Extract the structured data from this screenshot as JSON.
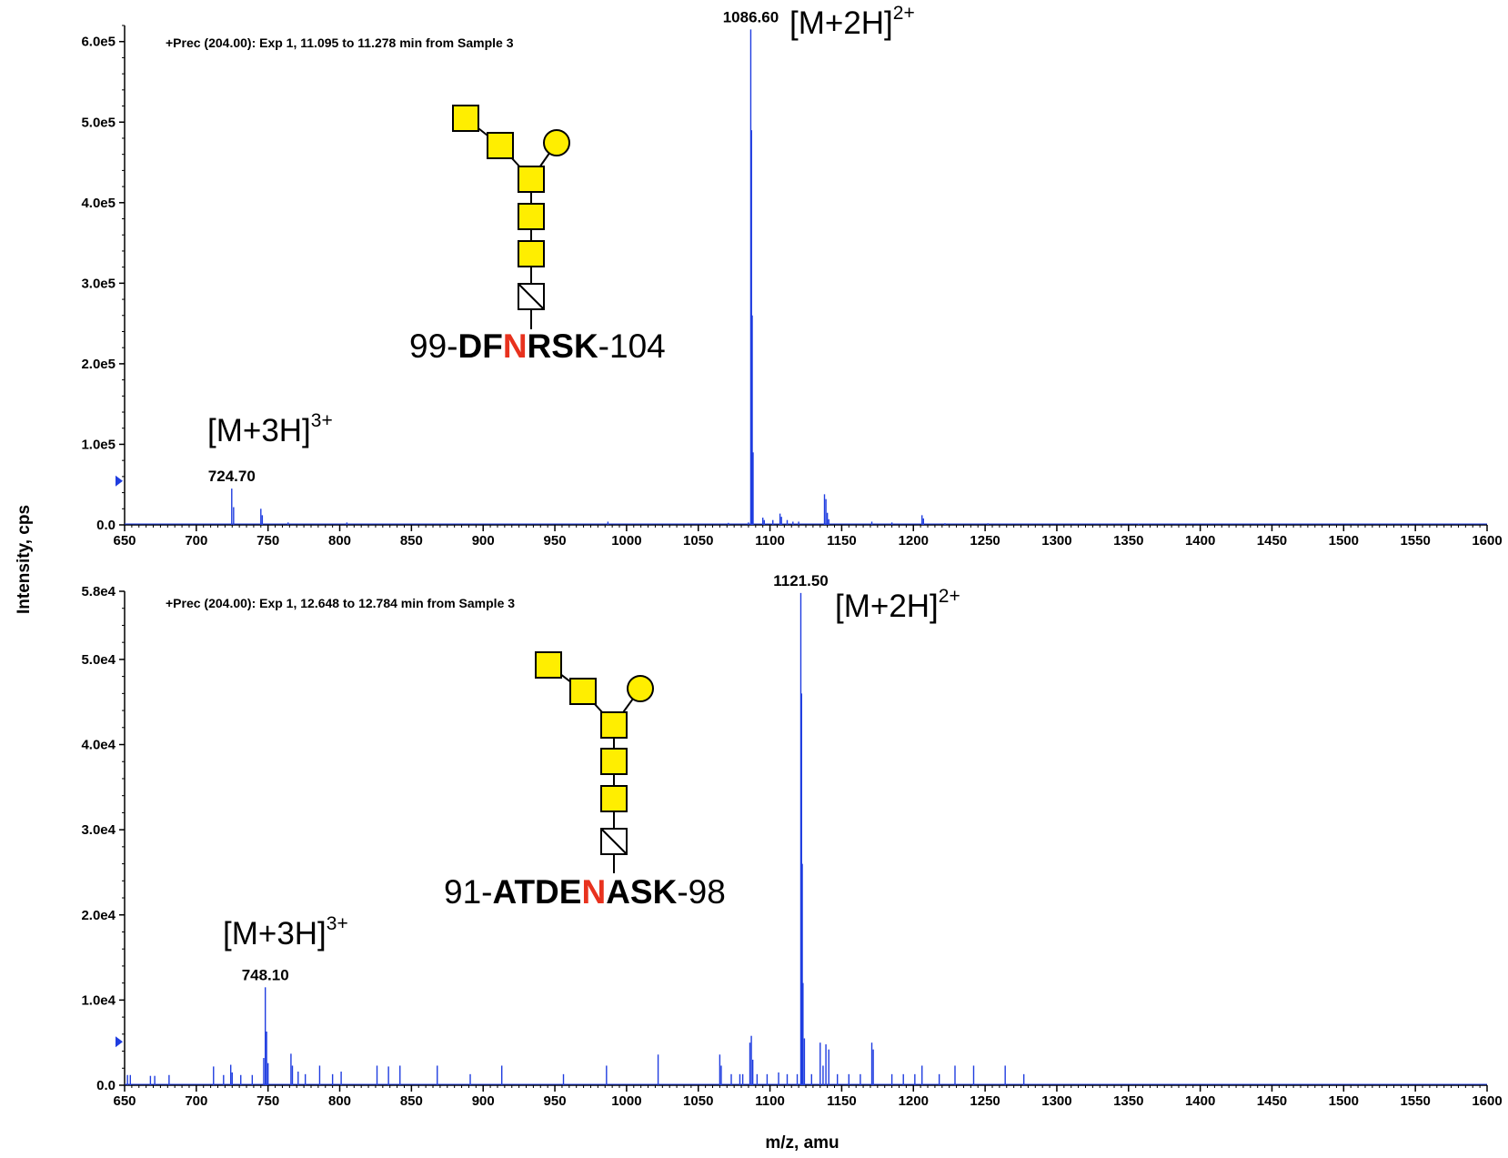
{
  "figure": {
    "ylabel": "Intensity, cps",
    "xlabel": "m/z, amu"
  },
  "chart_data": [
    {
      "type": "line",
      "subtype": "mass-spectrum",
      "title": "+Prec (204.00): Exp 1, 11.095 to 11.278 min from Sample 3",
      "xlim": [
        650,
        1600
      ],
      "ylim": [
        0,
        620000
      ],
      "x_ticks": [
        650,
        700,
        750,
        800,
        850,
        900,
        950,
        1000,
        1050,
        1100,
        1150,
        1200,
        1250,
        1300,
        1350,
        1400,
        1450,
        1500,
        1550,
        1600
      ],
      "y_ticks": [
        {
          "value": 0,
          "label": "0.0"
        },
        {
          "value": 100000,
          "label": "1.0e5"
        },
        {
          "value": 200000,
          "label": "2.0e5"
        },
        {
          "value": 300000,
          "label": "3.0e5"
        },
        {
          "value": 400000,
          "label": "4.0e5"
        },
        {
          "value": 500000,
          "label": "5.0e5"
        },
        {
          "value": 600000,
          "label": "6.0e5"
        }
      ],
      "line_color": "#1f3de0",
      "peaks": [
        {
          "x": 724.7,
          "y": 45000,
          "label": "724.70"
        },
        {
          "x": 726.0,
          "y": 22000
        },
        {
          "x": 745.0,
          "y": 20000
        },
        {
          "x": 746.0,
          "y": 12000
        },
        {
          "x": 764.0,
          "y": 3000
        },
        {
          "x": 805.0,
          "y": 3000
        },
        {
          "x": 987.0,
          "y": 4000
        },
        {
          "x": 1071.0,
          "y": 2500
        },
        {
          "x": 1085.0,
          "y": 3000
        },
        {
          "x": 1086.6,
          "y": 615000,
          "label": "1086.60"
        },
        {
          "x": 1087.1,
          "y": 490000
        },
        {
          "x": 1087.6,
          "y": 260000
        },
        {
          "x": 1088.2,
          "y": 90000
        },
        {
          "x": 1095.0,
          "y": 9000
        },
        {
          "x": 1096.0,
          "y": 6000
        },
        {
          "x": 1102.0,
          "y": 6000
        },
        {
          "x": 1107.0,
          "y": 14000
        },
        {
          "x": 1108.0,
          "y": 10000
        },
        {
          "x": 1112.0,
          "y": 6000
        },
        {
          "x": 1116.0,
          "y": 4000
        },
        {
          "x": 1120.0,
          "y": 4000
        },
        {
          "x": 1138.0,
          "y": 38000
        },
        {
          "x": 1139.0,
          "y": 32000
        },
        {
          "x": 1140.0,
          "y": 15000
        },
        {
          "x": 1141.0,
          "y": 7000
        },
        {
          "x": 1171.0,
          "y": 4000
        },
        {
          "x": 1185.0,
          "y": 3000
        },
        {
          "x": 1206.0,
          "y": 12000
        },
        {
          "x": 1207.0,
          "y": 8000
        },
        {
          "x": 1222.0,
          "y": 2000
        },
        {
          "x": 1252.0,
          "y": 2000
        },
        {
          "x": 1357.0,
          "y": 1500
        }
      ],
      "annotations": {
        "glycan_structure": "GlcNAc-GlcNAc-Man(Man-Gal)-Man-Man-Man-Asn",
        "peptide_prefix": "99-",
        "peptide_bold_start": "DF",
        "peptide_site": "N",
        "peptide_bold_end": "RSK",
        "peptide_suffix": "-104",
        "ion_main": "[M+2H]",
        "ion_main_charge": "2+",
        "ion_minor": "[M+3H]",
        "ion_minor_charge": "3+"
      }
    },
    {
      "type": "line",
      "subtype": "mass-spectrum",
      "title": "+Prec (204.00): Exp 1, 12.648 to 12.784 min from Sample 3",
      "xlim": [
        650,
        1600
      ],
      "ylim": [
        0,
        58000
      ],
      "x_ticks": [
        650,
        700,
        750,
        800,
        850,
        900,
        950,
        1000,
        1050,
        1100,
        1150,
        1200,
        1250,
        1300,
        1350,
        1400,
        1450,
        1500,
        1550,
        1600
      ],
      "y_ticks": [
        {
          "value": 0,
          "label": "0.0"
        },
        {
          "value": 10000,
          "label": "1.0e4"
        },
        {
          "value": 20000,
          "label": "2.0e4"
        },
        {
          "value": 30000,
          "label": "3.0e4"
        },
        {
          "value": 40000,
          "label": "4.0e4"
        },
        {
          "value": 50000,
          "label": "5.0e4"
        },
        {
          "value": 58000,
          "label": "5.8e4"
        }
      ],
      "line_color": "#1f3de0",
      "peaks": [
        {
          "x": 652.0,
          "y": 1200
        },
        {
          "x": 654.0,
          "y": 1200
        },
        {
          "x": 668.0,
          "y": 1100
        },
        {
          "x": 671.0,
          "y": 1100
        },
        {
          "x": 681.0,
          "y": 1200
        },
        {
          "x": 712.0,
          "y": 2200
        },
        {
          "x": 719.0,
          "y": 1200
        },
        {
          "x": 724.0,
          "y": 2400
        },
        {
          "x": 725.0,
          "y": 1500
        },
        {
          "x": 731.0,
          "y": 1200
        },
        {
          "x": 739.0,
          "y": 1200
        },
        {
          "x": 747.0,
          "y": 3200
        },
        {
          "x": 748.1,
          "y": 11500,
          "label": "748.10"
        },
        {
          "x": 749.0,
          "y": 6300
        },
        {
          "x": 750.0,
          "y": 2600
        },
        {
          "x": 766.0,
          "y": 3700
        },
        {
          "x": 767.0,
          "y": 2300
        },
        {
          "x": 771.0,
          "y": 1600
        },
        {
          "x": 776.0,
          "y": 1300
        },
        {
          "x": 786.0,
          "y": 2300
        },
        {
          "x": 795.0,
          "y": 1300
        },
        {
          "x": 801.0,
          "y": 1600
        },
        {
          "x": 826.0,
          "y": 2300
        },
        {
          "x": 834.0,
          "y": 2200
        },
        {
          "x": 842.0,
          "y": 2300
        },
        {
          "x": 868.0,
          "y": 2300
        },
        {
          "x": 891.0,
          "y": 1300
        },
        {
          "x": 913.0,
          "y": 2300
        },
        {
          "x": 956.0,
          "y": 1300
        },
        {
          "x": 986.0,
          "y": 2300
        },
        {
          "x": 1022.0,
          "y": 3600
        },
        {
          "x": 1065.0,
          "y": 3600
        },
        {
          "x": 1066.0,
          "y": 2300
        },
        {
          "x": 1073.0,
          "y": 1300
        },
        {
          "x": 1079.0,
          "y": 1300
        },
        {
          "x": 1081.0,
          "y": 1300
        },
        {
          "x": 1086.0,
          "y": 5000
        },
        {
          "x": 1087.0,
          "y": 5800
        },
        {
          "x": 1088.0,
          "y": 3000
        },
        {
          "x": 1091.0,
          "y": 1300
        },
        {
          "x": 1098.0,
          "y": 1300
        },
        {
          "x": 1106.0,
          "y": 1500
        },
        {
          "x": 1112.0,
          "y": 1300
        },
        {
          "x": 1119.0,
          "y": 1300
        },
        {
          "x": 1121.5,
          "y": 57800,
          "label": "1121.50"
        },
        {
          "x": 1122.0,
          "y": 46000
        },
        {
          "x": 1122.5,
          "y": 26000
        },
        {
          "x": 1123.0,
          "y": 12000
        },
        {
          "x": 1124.0,
          "y": 5500
        },
        {
          "x": 1129.0,
          "y": 1300
        },
        {
          "x": 1135.0,
          "y": 5000
        },
        {
          "x": 1137.0,
          "y": 2300
        },
        {
          "x": 1139.0,
          "y": 4800
        },
        {
          "x": 1141.0,
          "y": 4200
        },
        {
          "x": 1147.0,
          "y": 1300
        },
        {
          "x": 1155.0,
          "y": 1300
        },
        {
          "x": 1163.0,
          "y": 1300
        },
        {
          "x": 1171.0,
          "y": 5000
        },
        {
          "x": 1172.0,
          "y": 4200
        },
        {
          "x": 1185.0,
          "y": 1300
        },
        {
          "x": 1193.0,
          "y": 1300
        },
        {
          "x": 1201.0,
          "y": 1300
        },
        {
          "x": 1206.0,
          "y": 2300
        },
        {
          "x": 1218.0,
          "y": 1300
        },
        {
          "x": 1229.0,
          "y": 2300
        },
        {
          "x": 1242.0,
          "y": 2300
        },
        {
          "x": 1264.0,
          "y": 2300
        },
        {
          "x": 1277.0,
          "y": 1300
        }
      ],
      "annotations": {
        "glycan_structure": "GlcNAc-GlcNAc-Man(Man-Gal)-Man-Man-Man-Asn",
        "peptide_prefix": "91-",
        "peptide_bold_start": "ATDE",
        "peptide_site": "N",
        "peptide_bold_end": "ASK",
        "peptide_suffix": "-98",
        "ion_main": "[M+2H]",
        "ion_main_charge": "2+",
        "ion_minor": "[M+3H]",
        "ion_minor_charge": "3+"
      }
    }
  ]
}
